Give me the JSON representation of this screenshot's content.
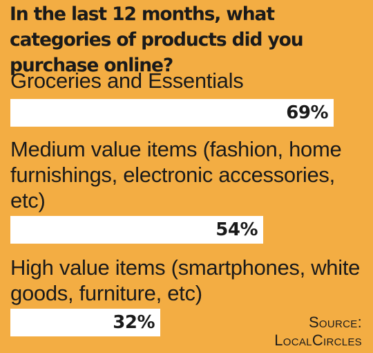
{
  "title": "In the last 12 months, what categories of products did you purchase online?",
  "source": {
    "line1": "Source:",
    "line2": "LocalCircles"
  },
  "chart_data": {
    "type": "bar",
    "orientation": "horizontal",
    "categories": [
      "Groceries and Essentials",
      "Medium value items (fashion, home furnishings, electronic accessories, etc)",
      "High value items (smartphones, white goods, furniture, etc)"
    ],
    "values": [
      69,
      54,
      32
    ],
    "value_labels": [
      "69%",
      "54%",
      "32%"
    ],
    "unit": "%",
    "xlim": [
      0,
      100
    ],
    "grid": false,
    "legend": "none"
  }
}
